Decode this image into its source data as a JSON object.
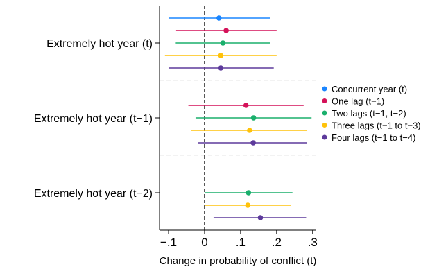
{
  "chart_data": {
    "type": "scatter",
    "subtype": "coefficient-plot",
    "xlabel": "Change in probability of conflict (t)",
    "xlim": [
      -0.125,
      0.31
    ],
    "x_ticks": [
      -0.1,
      0,
      0.1,
      0.2,
      0.3
    ],
    "x_tick_labels": [
      "−.1",
      "0",
      ".1",
      ".2",
      ".3"
    ],
    "reference_line": {
      "x": 0,
      "style": "dashed"
    },
    "grid": "horizontal separators between groups (dashed, light gray)",
    "legend_position": "right",
    "categories": [
      "Extremely hot year (t)",
      "Extremely hot year (t−1)",
      "Extremely hot year (t−2)"
    ],
    "series": [
      {
        "name": "Concurrent year (t)",
        "color": "#1a85ff",
        "points": [
          {
            "category": "Extremely hot year (t)",
            "estimate": 0.04,
            "ci_low": -0.1,
            "ci_high": 0.182
          }
        ]
      },
      {
        "name": "One lag (t−1)",
        "color": "#d41159",
        "points": [
          {
            "category": "Extremely hot year (t)",
            "estimate": 0.06,
            "ci_low": -0.079,
            "ci_high": 0.2
          },
          {
            "category": "Extremely hot year (t−1)",
            "estimate": 0.115,
            "ci_low": -0.045,
            "ci_high": 0.275
          }
        ]
      },
      {
        "name": "Two lags (t−1, t−2)",
        "color": "#1aaf6c",
        "points": [
          {
            "category": "Extremely hot year (t)",
            "estimate": 0.051,
            "ci_low": -0.08,
            "ci_high": 0.182
          },
          {
            "category": "Extremely hot year (t−1)",
            "estimate": 0.136,
            "ci_low": -0.025,
            "ci_high": 0.297
          },
          {
            "category": "Extremely hot year (t−2)",
            "estimate": 0.122,
            "ci_low": 0.0,
            "ci_high": 0.244
          }
        ]
      },
      {
        "name": "Three lags (t−1 to t−3)",
        "color": "#ffc20a",
        "points": [
          {
            "category": "Extremely hot year (t)",
            "estimate": 0.045,
            "ci_low": -0.11,
            "ci_high": 0.2
          },
          {
            "category": "Extremely hot year (t−1)",
            "estimate": 0.125,
            "ci_low": -0.038,
            "ci_high": 0.285
          },
          {
            "category": "Extremely hot year (t−2)",
            "estimate": 0.12,
            "ci_low": 0.0,
            "ci_high": 0.24
          }
        ]
      },
      {
        "name": "Four lags (t−1 to t−4)",
        "color": "#5d3a9b",
        "points": [
          {
            "category": "Extremely hot year (t)",
            "estimate": 0.045,
            "ci_low": -0.1,
            "ci_high": 0.192
          },
          {
            "category": "Extremely hot year (t−1)",
            "estimate": 0.135,
            "ci_low": -0.018,
            "ci_high": 0.285
          },
          {
            "category": "Extremely hot year (t−2)",
            "estimate": 0.155,
            "ci_low": 0.025,
            "ci_high": 0.282
          }
        ]
      }
    ]
  }
}
